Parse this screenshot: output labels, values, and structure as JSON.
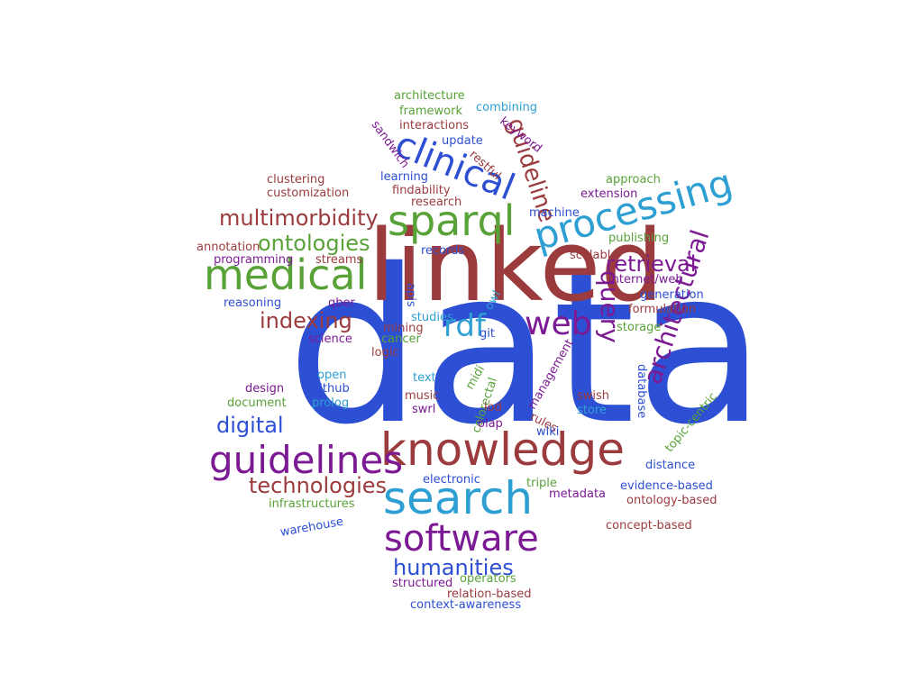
{
  "palette": {
    "red": "#9b3b3e",
    "green": "#58a238",
    "blue": "#2d4fd4",
    "cyan": "#2e9fd3",
    "purple": "#7c1a94"
  },
  "words": [
    {
      "text": "data",
      "color": "blue"
    },
    {
      "text": "linked",
      "color": "red"
    },
    {
      "text": "knowledge",
      "color": "red"
    },
    {
      "text": "search",
      "color": "cyan"
    },
    {
      "text": "software",
      "color": "purple"
    },
    {
      "text": "guidelines",
      "color": "purple"
    },
    {
      "text": "medical",
      "color": "green"
    },
    {
      "text": "sparql",
      "color": "green"
    },
    {
      "text": "processing",
      "color": "cyan"
    },
    {
      "text": "clinical",
      "color": "blue"
    },
    {
      "text": "web",
      "color": "purple"
    },
    {
      "text": "rdf",
      "color": "cyan"
    },
    {
      "text": "query",
      "color": "purple"
    },
    {
      "text": "architectural",
      "color": "purple"
    },
    {
      "text": "guideline",
      "color": "red"
    },
    {
      "text": "ontologies",
      "color": "green"
    },
    {
      "text": "multimorbidity",
      "color": "red"
    },
    {
      "text": "indexing",
      "color": "red"
    },
    {
      "text": "retrieval",
      "color": "purple"
    },
    {
      "text": "digital",
      "color": "blue"
    },
    {
      "text": "technologies",
      "color": "red"
    },
    {
      "text": "humanities",
      "color": "blue"
    },
    {
      "text": "architecture",
      "color": "green"
    },
    {
      "text": "combining",
      "color": "cyan"
    },
    {
      "text": "framework",
      "color": "green"
    },
    {
      "text": "interactions",
      "color": "red"
    },
    {
      "text": "keyword",
      "color": "purple"
    },
    {
      "text": "sandwich",
      "color": "purple"
    },
    {
      "text": "update",
      "color": "blue"
    },
    {
      "text": "restful",
      "color": "red"
    },
    {
      "text": "clustering",
      "color": "red"
    },
    {
      "text": "learning",
      "color": "blue"
    },
    {
      "text": "approach",
      "color": "green"
    },
    {
      "text": "findability",
      "color": "red"
    },
    {
      "text": "extension",
      "color": "purple"
    },
    {
      "text": "customization",
      "color": "red"
    },
    {
      "text": "research",
      "color": "red"
    },
    {
      "text": "machine",
      "color": "blue"
    },
    {
      "text": "publishing",
      "color": "green"
    },
    {
      "text": "annotation",
      "color": "red"
    },
    {
      "text": "records",
      "color": "blue"
    },
    {
      "text": "programming",
      "color": "purple"
    },
    {
      "text": "streams",
      "color": "red"
    },
    {
      "text": "scalable",
      "color": "red"
    },
    {
      "text": "internet/web",
      "color": "purple"
    },
    {
      "text": "apis",
      "color": "blue"
    },
    {
      "text": "reasoning",
      "color": "blue"
    },
    {
      "text": "qber",
      "color": "purple"
    },
    {
      "text": "generation",
      "color": "blue"
    },
    {
      "text": "formulation",
      "color": "red"
    },
    {
      "text": "owl",
      "color": "cyan"
    },
    {
      "text": "studies",
      "color": "cyan"
    },
    {
      "text": "mining",
      "color": "red"
    },
    {
      "text": "storage",
      "color": "green"
    },
    {
      "text": "cancer",
      "color": "green"
    },
    {
      "text": "git",
      "color": "blue"
    },
    {
      "text": "science",
      "color": "purple"
    },
    {
      "text": "logic",
      "color": "red"
    },
    {
      "text": "open",
      "color": "cyan"
    },
    {
      "text": "text",
      "color": "cyan"
    },
    {
      "text": "midi",
      "color": "green"
    },
    {
      "text": "management",
      "color": "purple"
    },
    {
      "text": "database",
      "color": "blue"
    },
    {
      "text": "design",
      "color": "purple"
    },
    {
      "text": "github",
      "color": "blue"
    },
    {
      "text": "document",
      "color": "green"
    },
    {
      "text": "prolog",
      "color": "cyan"
    },
    {
      "text": "music",
      "color": "red"
    },
    {
      "text": "colorectal",
      "color": "green"
    },
    {
      "text": "lod",
      "color": "red"
    },
    {
      "text": "swish",
      "color": "red"
    },
    {
      "text": "swrl",
      "color": "purple"
    },
    {
      "text": "rules",
      "color": "red"
    },
    {
      "text": "store",
      "color": "cyan"
    },
    {
      "text": "topic-centric",
      "color": "green"
    },
    {
      "text": "olap",
      "color": "purple"
    },
    {
      "text": "wiki",
      "color": "blue"
    },
    {
      "text": "distance",
      "color": "blue"
    },
    {
      "text": "electronic",
      "color": "blue"
    },
    {
      "text": "triple",
      "color": "green"
    },
    {
      "text": "evidence-based",
      "color": "blue"
    },
    {
      "text": "metadata",
      "color": "purple"
    },
    {
      "text": "ontology-based",
      "color": "red"
    },
    {
      "text": "infrastructures",
      "color": "green"
    },
    {
      "text": "warehouse",
      "color": "blue"
    },
    {
      "text": "concept-based",
      "color": "red"
    },
    {
      "text": "operators",
      "color": "green"
    },
    {
      "text": "structured",
      "color": "purple"
    },
    {
      "text": "relation-based",
      "color": "red"
    },
    {
      "text": "context-awareness",
      "color": "blue"
    }
  ]
}
